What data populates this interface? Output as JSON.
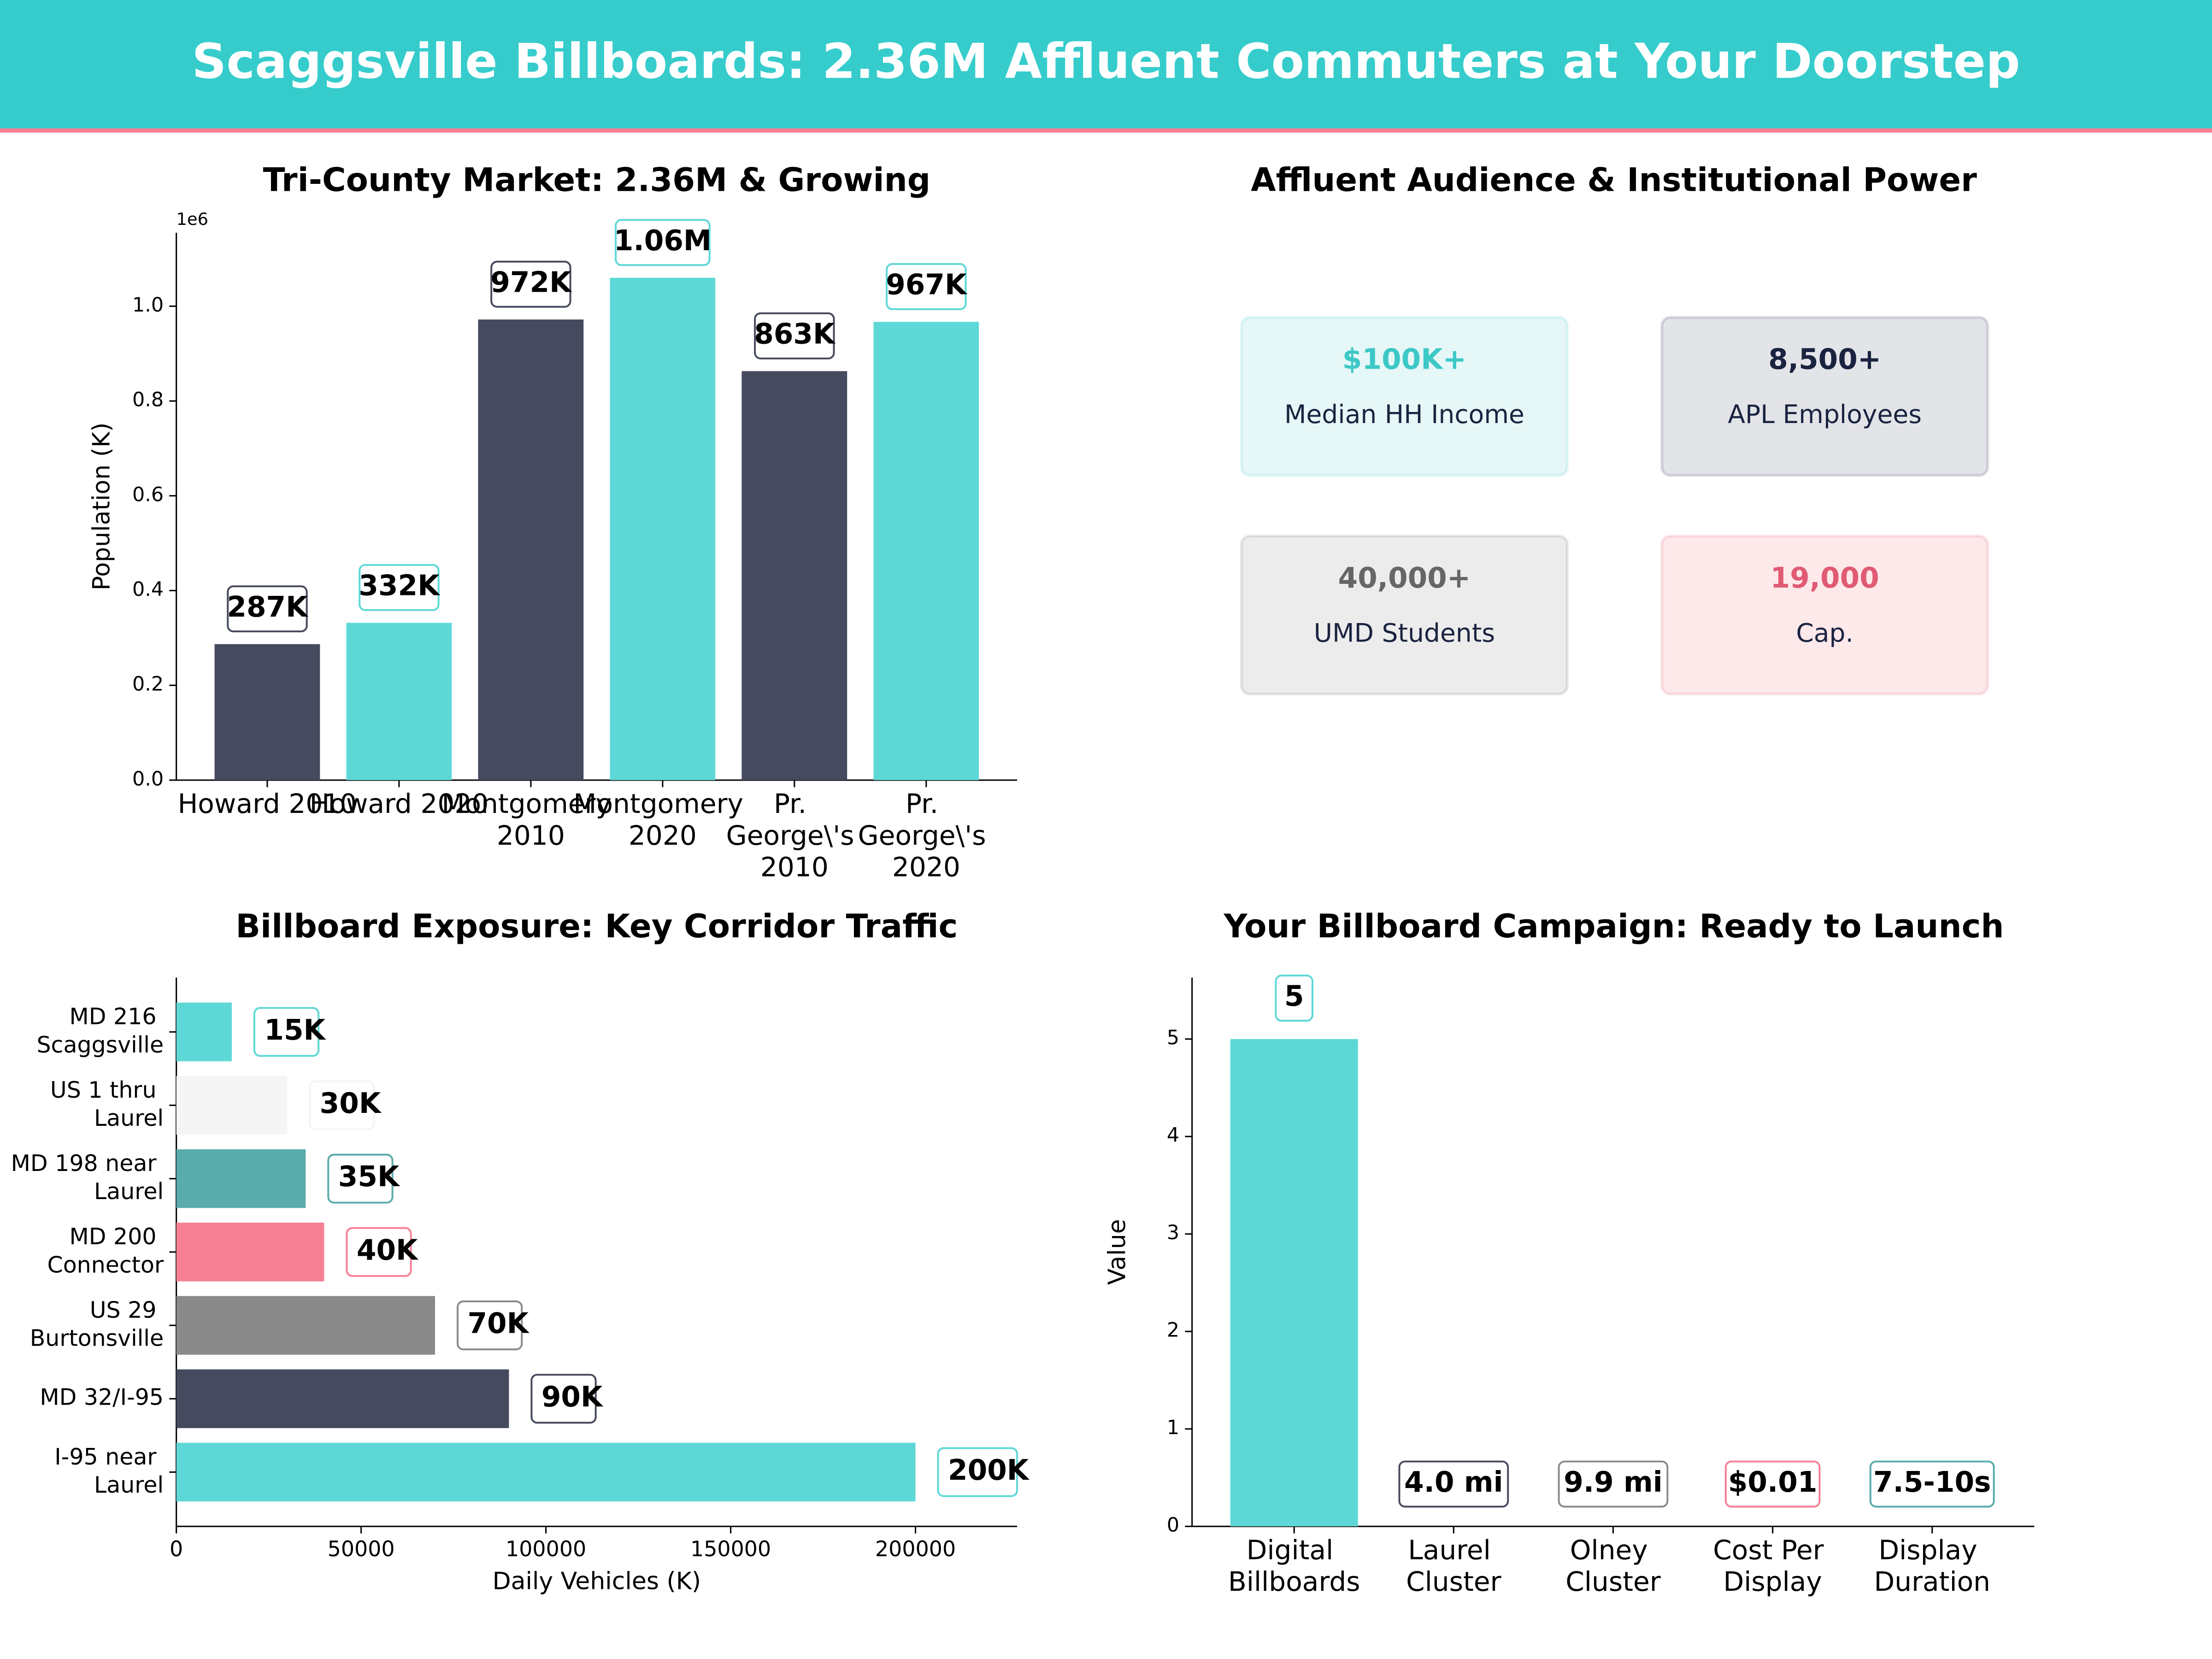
{
  "title": "Scaggsville Billboards: 2.36M Affluent Commuters at Your Doorstep",
  "chart_data": [
    {
      "type": "bar",
      "title": "Tri-County Market: 2.36M & Growing",
      "ylabel": "Population (K)",
      "y_offset_text": "1e6",
      "categories": [
        "Howard 2010",
        "Howard 2020",
        "Montgomery\n2010",
        "Montgomery\n2020",
        "Pr.\nGeorge\\'s\n2010",
        "Pr.\nGeorge\\'s\n2020"
      ],
      "values": [
        287000,
        332000,
        972000,
        1060000,
        863000,
        967000
      ],
      "value_labels": [
        "287K",
        "332K",
        "972K",
        "1.06M",
        "863K",
        "967K"
      ],
      "colors": [
        "#464a5e",
        "#5dd8d6",
        "#464a5e",
        "#5dd8d6",
        "#464a5e",
        "#5dd8d6"
      ],
      "ylim": [
        0,
        1155000
      ],
      "yticks": [
        {
          "value": 0,
          "label": "0.0"
        },
        {
          "value": 200000,
          "label": "0.2"
        },
        {
          "value": 400000,
          "label": "0.4"
        },
        {
          "value": 600000,
          "label": "0.6"
        },
        {
          "value": 800000,
          "label": "0.8"
        },
        {
          "value": 1000000,
          "label": "1.0"
        }
      ]
    },
    {
      "type": "cards",
      "title": "Affluent Audience & Institutional Power",
      "items": [
        {
          "value": "$100K+",
          "label": "Median HH Income",
          "color": "#3cc8c6",
          "fill": "#e6f7f7"
        },
        {
          "value": "8,500+",
          "label": "APL Employees",
          "color": "#1a2340",
          "fill": "#e3e4e8"
        },
        {
          "value": "40,000+",
          "label": "UMD Students",
          "color": "#666666",
          "fill": "#ececec"
        },
        {
          "value": "19,000",
          "label": "Cap.",
          "color": "#e05a73",
          "fill": "#fde8ea"
        }
      ]
    },
    {
      "type": "hbar",
      "title": "Billboard Exposure: Key Corridor Traffic",
      "xlabel": "Daily Vehicles (K)",
      "categories": [
        "MD 216\nScaggsville",
        "US 1 thru\nLaurel",
        "MD 198 near\nLaurel",
        "MD 200\nConnector",
        "US 29\nBurtonsville",
        "MD 32/I-95",
        "I-95 near\nLaurel"
      ],
      "values": [
        15000,
        30000,
        35000,
        40000,
        70000,
        90000,
        200000
      ],
      "value_labels": [
        "15K",
        "30K",
        "35K",
        "40K",
        "70K",
        "90K",
        "200K"
      ],
      "colors": [
        "#5dd8d6",
        "#f5f5f5",
        "#5aabab",
        "#f77f94",
        "#8a8a8a",
        "#464a5e",
        "#5dd8d6"
      ],
      "xlim": [
        0,
        227500
      ],
      "xticks": [
        0,
        50000,
        100000,
        150000,
        200000
      ]
    },
    {
      "type": "bar",
      "title": "Your Billboard Campaign: Ready to Launch",
      "ylabel": "Value",
      "categories": [
        "Digital\nBillboards",
        "Laurel\nCluster",
        "Olney\nCluster",
        "Cost Per\nDisplay",
        "Display\nDuration"
      ],
      "values": [
        5,
        null,
        null,
        null,
        null
      ],
      "colors": [
        "#5dd8d6",
        null,
        null,
        null,
        null
      ],
      "annotations": [
        "4.0 mi",
        "9.9 mi",
        "$0.01",
        "7.5-10s"
      ],
      "annotation_colors": [
        "#464a5e",
        "#8a8a8a",
        "#f77f94",
        "#5aabab"
      ],
      "ylim": [
        0,
        5.63
      ],
      "yticks": [
        0,
        1,
        2,
        3,
        4,
        5
      ]
    }
  ]
}
